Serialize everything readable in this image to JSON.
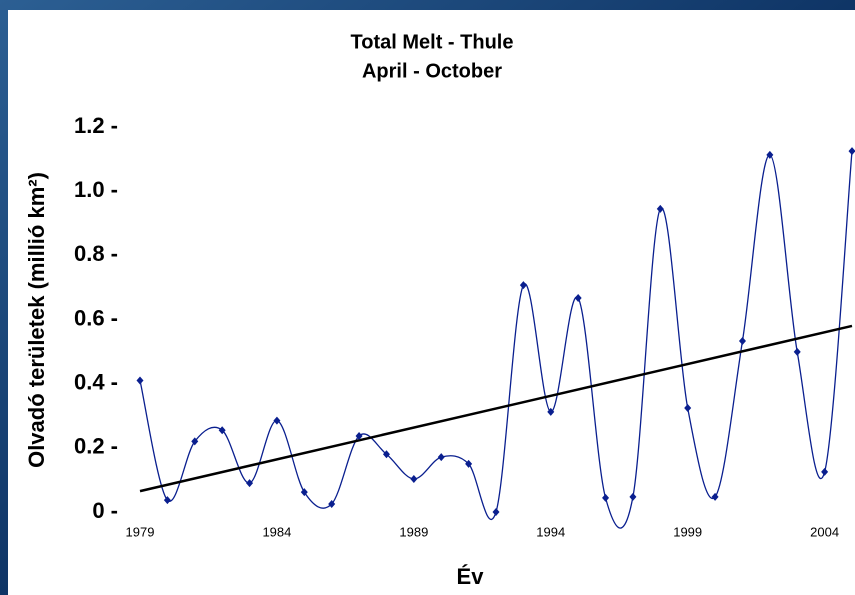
{
  "chart_data": {
    "type": "line",
    "title": "Total Melt - Thule",
    "subtitle": "April - October",
    "x_label": "Év",
    "y_label": "Olvadó területek (millió km²)",
    "x": [
      1979,
      1980,
      1981,
      1982,
      1983,
      1984,
      1985,
      1986,
      1987,
      1988,
      1989,
      1990,
      1991,
      1992,
      1993,
      1994,
      1995,
      1996,
      1997,
      1998,
      1999,
      2000,
      2001,
      2002,
      2003,
      2004,
      2005
    ],
    "series": [
      {
        "color": "#0a1f8f",
        "values": [
          0.41,
          0.037,
          0.22,
          0.255,
          0.09,
          0.285,
          0.062,
          0.025,
          0.237,
          0.18,
          0.103,
          0.171,
          0.15,
          0.0,
          0.707,
          0.312,
          0.667,
          0.044,
          0.047,
          0.945,
          0.324,
          0.047,
          0.533,
          1.113,
          0.499,
          0.125,
          1.125
        ]
      }
    ],
    "trendline": {
      "color": "#000000",
      "x": [
        1979,
        2005
      ],
      "values": [
        0.065,
        0.58
      ]
    },
    "xlim": [
      1979,
      2005
    ],
    "ylim": [
      0,
      1.2
    ],
    "xticks": [
      1979,
      1984,
      1989,
      1994,
      1999,
      2004
    ],
    "yticks": [
      {
        "value": 0,
        "label": "0 -"
      },
      {
        "value": 0.2,
        "label": "0.2 -"
      },
      {
        "value": 0.4,
        "label": "0.4 -"
      },
      {
        "value": 0.6,
        "label": "0.6 -"
      },
      {
        "value": 0.8,
        "label": "0.8 -"
      },
      {
        "value": 1.0,
        "label": "1.0 -"
      },
      {
        "value": 1.2,
        "label": "1.2 -"
      }
    ]
  }
}
